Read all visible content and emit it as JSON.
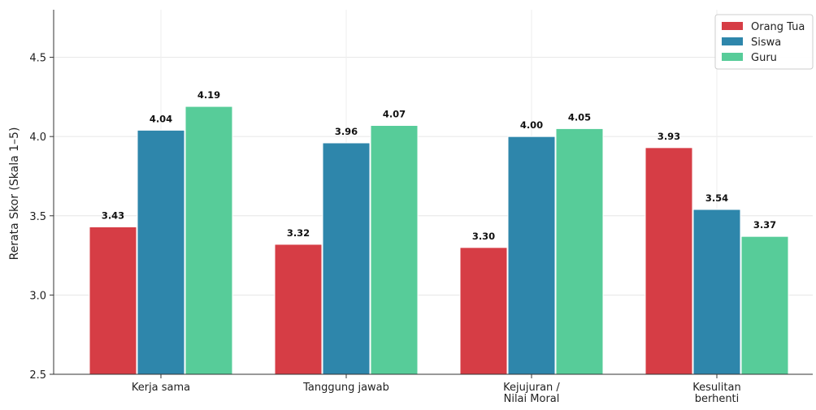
{
  "chart_data": {
    "type": "bar",
    "title": "",
    "xlabel": "",
    "ylabel": "Rerata Skor (Skala 1–5)",
    "ylim": [
      2.5,
      4.8
    ],
    "yticks": [
      "2.5",
      "3.0",
      "3.5",
      "4.0",
      "4.5"
    ],
    "categories": [
      [
        "Kerja sama"
      ],
      [
        "Tanggung jawab"
      ],
      [
        "Kejujuran /",
        "Nilai Moral"
      ],
      [
        "Kesulitan",
        "berhenti"
      ]
    ],
    "series": [
      {
        "name": "Orang Tua",
        "color": "#d63d45",
        "values": [
          3.43,
          3.32,
          3.3,
          3.93
        ],
        "labels": [
          "3.43",
          "3.32",
          "3.30",
          "3.93"
        ]
      },
      {
        "name": "Siswa",
        "color": "#2e86ab",
        "values": [
          4.04,
          3.96,
          4.0,
          3.54
        ],
        "labels": [
          "4.04",
          "3.96",
          "4.00",
          "3.54"
        ]
      },
      {
        "name": "Guru",
        "color": "#57cc99",
        "values": [
          4.19,
          4.07,
          4.05,
          3.37
        ],
        "labels": [
          "4.19",
          "4.07",
          "4.05",
          "3.37"
        ]
      }
    ],
    "grid": true,
    "legend_position": "top-right"
  }
}
